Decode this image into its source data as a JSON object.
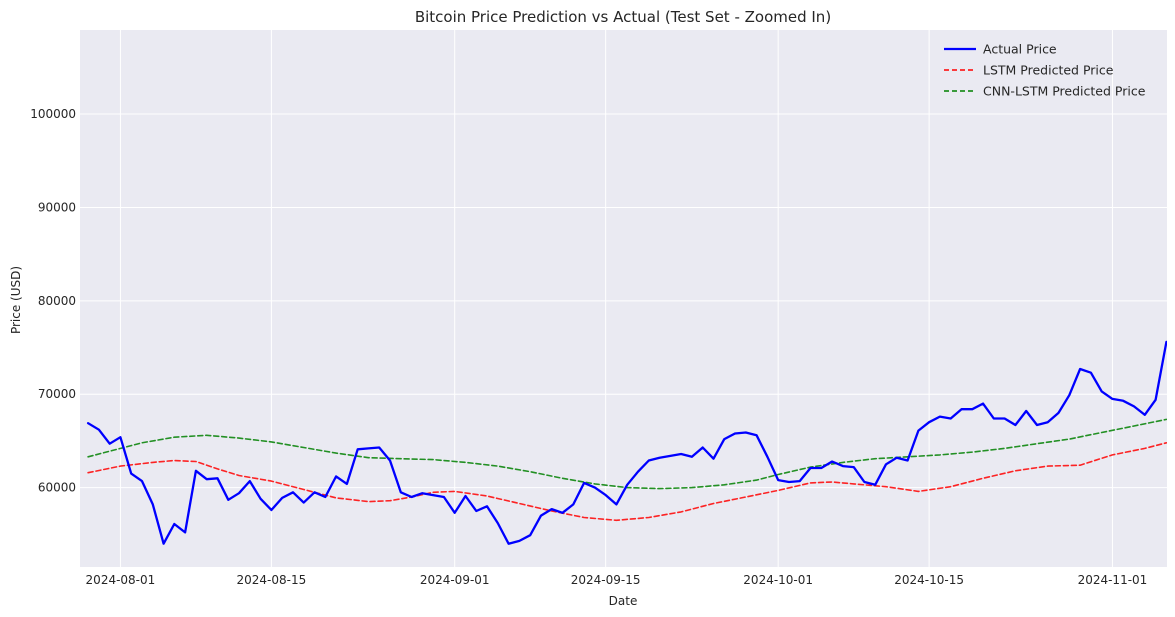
{
  "chart_data": {
    "type": "line",
    "title": "Bitcoin Price Prediction vs Actual (Test Set - Zoomed In)",
    "xlabel": "Date",
    "ylabel": "Price (USD)",
    "grid": true,
    "legend_position": "top-right",
    "x_range": [
      "2024-07-29",
      "2024-11-06"
    ],
    "ylim": [
      51500,
      109000
    ],
    "x_ticks": [
      "2024-08-01",
      "2024-08-15",
      "2024-09-01",
      "2024-09-15",
      "2024-10-01",
      "2024-10-15",
      "2024-11-01"
    ],
    "y_ticks": [
      60000,
      70000,
      80000,
      90000,
      100000
    ],
    "series": [
      {
        "name": "Actual Price",
        "color": "#0000ff",
        "style": "solid",
        "values": [
          [
            "2024-07-29",
            66900
          ],
          [
            "2024-07-30",
            66200
          ],
          [
            "2024-07-31",
            64700
          ],
          [
            "2024-08-01",
            65400
          ],
          [
            "2024-08-02",
            61500
          ],
          [
            "2024-08-03",
            60700
          ],
          [
            "2024-08-04",
            58200
          ],
          [
            "2024-08-05",
            54000
          ],
          [
            "2024-08-06",
            56100
          ],
          [
            "2024-08-07",
            55200
          ],
          [
            "2024-08-08",
            61800
          ],
          [
            "2024-08-09",
            60900
          ],
          [
            "2024-08-10",
            61000
          ],
          [
            "2024-08-11",
            58700
          ],
          [
            "2024-08-12",
            59400
          ],
          [
            "2024-08-13",
            60700
          ],
          [
            "2024-08-14",
            58800
          ],
          [
            "2024-08-15",
            57600
          ],
          [
            "2024-08-16",
            58900
          ],
          [
            "2024-08-17",
            59500
          ],
          [
            "2024-08-18",
            58400
          ],
          [
            "2024-08-19",
            59500
          ],
          [
            "2024-08-20",
            59000
          ],
          [
            "2024-08-21",
            61200
          ],
          [
            "2024-08-22",
            60400
          ],
          [
            "2024-08-23",
            64100
          ],
          [
            "2024-08-24",
            64200
          ],
          [
            "2024-08-25",
            64300
          ],
          [
            "2024-08-26",
            62900
          ],
          [
            "2024-08-27",
            59500
          ],
          [
            "2024-08-28",
            59000
          ],
          [
            "2024-08-29",
            59400
          ],
          [
            "2024-08-30",
            59200
          ],
          [
            "2024-08-31",
            59000
          ],
          [
            "2024-09-01",
            57300
          ],
          [
            "2024-09-02",
            59100
          ],
          [
            "2024-09-03",
            57500
          ],
          [
            "2024-09-04",
            58000
          ],
          [
            "2024-09-05",
            56200
          ],
          [
            "2024-09-06",
            54000
          ],
          [
            "2024-09-07",
            54300
          ],
          [
            "2024-09-08",
            54900
          ],
          [
            "2024-09-09",
            57000
          ],
          [
            "2024-09-10",
            57700
          ],
          [
            "2024-09-11",
            57300
          ],
          [
            "2024-09-12",
            58200
          ],
          [
            "2024-09-13",
            60500
          ],
          [
            "2024-09-14",
            60000
          ],
          [
            "2024-09-15",
            59200
          ],
          [
            "2024-09-16",
            58200
          ],
          [
            "2024-09-17",
            60300
          ],
          [
            "2024-09-18",
            61700
          ],
          [
            "2024-09-19",
            62900
          ],
          [
            "2024-09-20",
            63200
          ],
          [
            "2024-09-21",
            63400
          ],
          [
            "2024-09-22",
            63600
          ],
          [
            "2024-09-23",
            63300
          ],
          [
            "2024-09-24",
            64300
          ],
          [
            "2024-09-25",
            63100
          ],
          [
            "2024-09-26",
            65200
          ],
          [
            "2024-09-27",
            65800
          ],
          [
            "2024-09-28",
            65900
          ],
          [
            "2024-09-29",
            65600
          ],
          [
            "2024-09-30",
            63300
          ],
          [
            "2024-10-01",
            60800
          ],
          [
            "2024-10-02",
            60600
          ],
          [
            "2024-10-03",
            60700
          ],
          [
            "2024-10-04",
            62100
          ],
          [
            "2024-10-05",
            62100
          ],
          [
            "2024-10-06",
            62800
          ],
          [
            "2024-10-07",
            62300
          ],
          [
            "2024-10-08",
            62200
          ],
          [
            "2024-10-09",
            60600
          ],
          [
            "2024-10-10",
            60300
          ],
          [
            "2024-10-11",
            62500
          ],
          [
            "2024-10-12",
            63200
          ],
          [
            "2024-10-13",
            62900
          ],
          [
            "2024-10-14",
            66100
          ],
          [
            "2024-10-15",
            67000
          ],
          [
            "2024-10-16",
            67600
          ],
          [
            "2024-10-17",
            67400
          ],
          [
            "2024-10-18",
            68400
          ],
          [
            "2024-10-19",
            68400
          ],
          [
            "2024-10-20",
            69000
          ],
          [
            "2024-10-21",
            67400
          ],
          [
            "2024-10-22",
            67400
          ],
          [
            "2024-10-23",
            66700
          ],
          [
            "2024-10-24",
            68200
          ],
          [
            "2024-10-25",
            66700
          ],
          [
            "2024-10-26",
            67000
          ],
          [
            "2024-10-27",
            68000
          ],
          [
            "2024-10-28",
            69900
          ],
          [
            "2024-10-29",
            72700
          ],
          [
            "2024-10-30",
            72300
          ],
          [
            "2024-10-31",
            70300
          ],
          [
            "2024-11-01",
            69500
          ],
          [
            "2024-11-02",
            69300
          ],
          [
            "2024-11-03",
            68700
          ],
          [
            "2024-11-04",
            67800
          ],
          [
            "2024-11-05",
            69400
          ],
          [
            "2024-11-06",
            75600
          ]
        ]
      },
      {
        "name": "LSTM Predicted Price",
        "color": "#ff0000",
        "style": "dashed",
        "values": [
          [
            "2024-07-29",
            61600
          ],
          [
            "2024-08-01",
            62300
          ],
          [
            "2024-08-04",
            62700
          ],
          [
            "2024-08-06",
            62900
          ],
          [
            "2024-08-08",
            62800
          ],
          [
            "2024-08-10",
            62000
          ],
          [
            "2024-08-12",
            61300
          ],
          [
            "2024-08-15",
            60700
          ],
          [
            "2024-08-18",
            59800
          ],
          [
            "2024-08-21",
            58900
          ],
          [
            "2024-08-24",
            58500
          ],
          [
            "2024-08-26",
            58600
          ],
          [
            "2024-08-28",
            59000
          ],
          [
            "2024-08-30",
            59500
          ],
          [
            "2024-09-01",
            59600
          ],
          [
            "2024-09-04",
            59100
          ],
          [
            "2024-09-07",
            58300
          ],
          [
            "2024-09-10",
            57500
          ],
          [
            "2024-09-13",
            56800
          ],
          [
            "2024-09-16",
            56500
          ],
          [
            "2024-09-19",
            56800
          ],
          [
            "2024-09-22",
            57400
          ],
          [
            "2024-09-25",
            58300
          ],
          [
            "2024-09-28",
            59000
          ],
          [
            "2024-10-01",
            59700
          ],
          [
            "2024-10-04",
            60500
          ],
          [
            "2024-10-06",
            60600
          ],
          [
            "2024-10-08",
            60400
          ],
          [
            "2024-10-11",
            60100
          ],
          [
            "2024-10-14",
            59600
          ],
          [
            "2024-10-17",
            60100
          ],
          [
            "2024-10-20",
            61000
          ],
          [
            "2024-10-23",
            61800
          ],
          [
            "2024-10-26",
            62300
          ],
          [
            "2024-10-29",
            62400
          ],
          [
            "2024-11-01",
            63500
          ],
          [
            "2024-11-04",
            64200
          ],
          [
            "2024-11-06",
            64800
          ]
        ]
      },
      {
        "name": "CNN-LSTM Predicted Price",
        "color": "#008000",
        "style": "dashed",
        "values": [
          [
            "2024-07-29",
            63300
          ],
          [
            "2024-07-31",
            63900
          ],
          [
            "2024-08-03",
            64800
          ],
          [
            "2024-08-06",
            65400
          ],
          [
            "2024-08-09",
            65600
          ],
          [
            "2024-08-12",
            65300
          ],
          [
            "2024-08-15",
            64900
          ],
          [
            "2024-08-18",
            64300
          ],
          [
            "2024-08-21",
            63700
          ],
          [
            "2024-08-24",
            63200
          ],
          [
            "2024-08-27",
            63100
          ],
          [
            "2024-08-30",
            63000
          ],
          [
            "2024-09-02",
            62700
          ],
          [
            "2024-09-05",
            62300
          ],
          [
            "2024-09-08",
            61700
          ],
          [
            "2024-09-11",
            61000
          ],
          [
            "2024-09-14",
            60400
          ],
          [
            "2024-09-17",
            60000
          ],
          [
            "2024-09-20",
            59900
          ],
          [
            "2024-09-23",
            60000
          ],
          [
            "2024-09-26",
            60300
          ],
          [
            "2024-09-29",
            60800
          ],
          [
            "2024-10-01",
            61400
          ],
          [
            "2024-10-04",
            62200
          ],
          [
            "2024-10-07",
            62700
          ],
          [
            "2024-10-10",
            63100
          ],
          [
            "2024-10-13",
            63300
          ],
          [
            "2024-10-16",
            63500
          ],
          [
            "2024-10-19",
            63800
          ],
          [
            "2024-10-22",
            64200
          ],
          [
            "2024-10-25",
            64700
          ],
          [
            "2024-10-28",
            65200
          ],
          [
            "2024-10-31",
            65900
          ],
          [
            "2024-11-03",
            66600
          ],
          [
            "2024-11-06",
            67300
          ]
        ]
      }
    ]
  }
}
